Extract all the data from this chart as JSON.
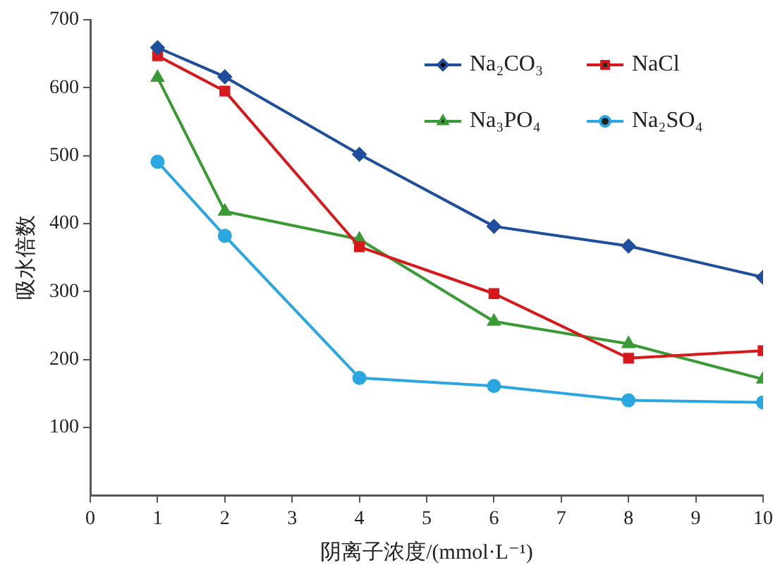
{
  "chart_data": {
    "type": "line",
    "xlabel": "阴离子浓度/(mmol·L⁻¹)",
    "ylabel": "吸水倍数",
    "x": [
      1,
      2,
      4,
      6,
      8,
      10
    ],
    "xlim": [
      0,
      10
    ],
    "xticks": [
      0,
      1,
      2,
      3,
      4,
      5,
      6,
      7,
      8,
      9,
      10
    ],
    "ylim": [
      0,
      700
    ],
    "yticks": [
      100,
      200,
      300,
      400,
      500,
      600,
      700
    ],
    "grid": false,
    "legend": "top right",
    "line_style": "solid",
    "series": [
      {
        "name": "Na₂CO₃",
        "color": "#1f4e9c",
        "marker": "diamond",
        "values": [
          659,
          616,
          502,
          396,
          367,
          321
        ]
      },
      {
        "name": "NaCl",
        "color": "#d7191c",
        "marker": "square",
        "values": [
          647,
          595,
          366,
          297,
          202,
          213
        ]
      },
      {
        "name": "Na₃PO₄",
        "color": "#3a9a35",
        "marker": "triangle",
        "values": [
          615,
          418,
          377,
          256,
          223,
          171
        ]
      },
      {
        "name": "Na₂SO₄",
        "color": "#2aa6e0",
        "marker": "circle",
        "values": [
          491,
          382,
          173,
          161,
          140,
          137
        ]
      }
    ]
  }
}
